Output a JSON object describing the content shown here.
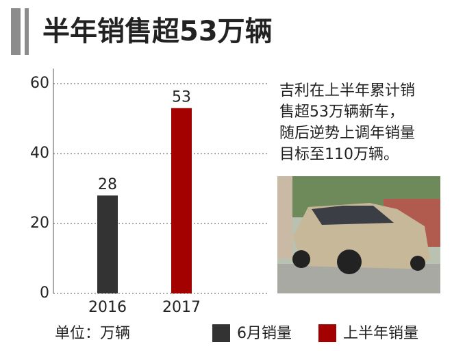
{
  "chart_data": {
    "type": "bar",
    "title": "半年销售超53万辆",
    "categories": [
      "2016",
      "2017"
    ],
    "series": [
      {
        "name": "6月销量",
        "color": "#333333",
        "values": [
          28,
          null
        ]
      },
      {
        "name": "上半年销量",
        "color": "#a30000",
        "values": [
          null,
          53
        ]
      }
    ],
    "ylim": [
      0,
      60
    ],
    "yticks": [
      0,
      20,
      40,
      60
    ],
    "grid": true,
    "unit_label": "单位：万辆",
    "description": [
      "吉利在上半年累计销",
      "售超53万辆新车，",
      "随后逆势上调年销量",
      "目标至110万辆。"
    ]
  }
}
